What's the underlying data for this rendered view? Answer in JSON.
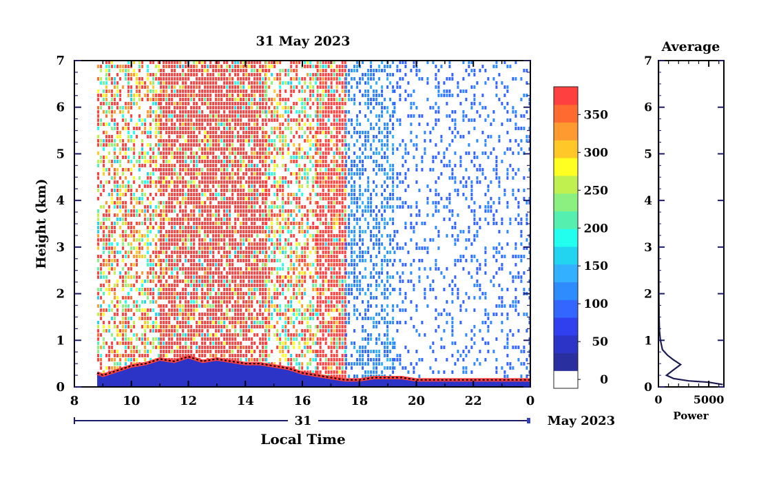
{
  "chart_data": [
    {
      "type": "heatmap",
      "title": "31 May 2023",
      "xlabel": "Local Time",
      "ylabel": "Height (km)",
      "x_ticks": [
        "8",
        "10",
        "12",
        "14",
        "16",
        "18",
        "20",
        "22",
        "0"
      ],
      "x_range_hours": [
        8,
        24
      ],
      "y_ticks": [
        "0",
        "1",
        "2",
        "3",
        "4",
        "5",
        "6",
        "7"
      ],
      "ylim": [
        0,
        7
      ],
      "date_row": {
        "day": "31",
        "month_label": "May 2023"
      },
      "data_start_hour": 8.8,
      "colorbar": {
        "tick_labels": [
          "0",
          "50",
          "100",
          "150",
          "200",
          "250",
          "300",
          "350"
        ],
        "range": [
          0,
          375
        ],
        "bands": [
          "#ffffff",
          "#2a2fa0",
          "#2c34c8",
          "#3040ee",
          "#3366ff",
          "#2f8cff",
          "#33b0ff",
          "#22d4f0",
          "#22ffee",
          "#55f0b0",
          "#8cf080",
          "#c0f050",
          "#ffff22",
          "#ffc828",
          "#ff9a30",
          "#ff6a30",
          "#ff4040"
        ],
        "band_range": [
          0,
          375
        ]
      },
      "regions": [
        {
          "from_hour": 8.8,
          "to_hour": 11.0,
          "top_km": 7,
          "fill": "mixed"
        },
        {
          "from_hour": 11.0,
          "to_hour": 14.7,
          "top_km": 7,
          "fill": "red"
        },
        {
          "from_hour": 14.7,
          "to_hour": 16.5,
          "top_km": 7,
          "fill": "mixed"
        },
        {
          "from_hour": 16.5,
          "to_hour": 17.5,
          "top_km": 7,
          "fill": "red"
        },
        {
          "from_hour": 17.5,
          "to_hour": 19.2,
          "top_km": 7,
          "fill": "blue"
        },
        {
          "from_hour": 19.2,
          "to_hour": 24.0,
          "top_km": 7,
          "fill": "blue-sparse"
        }
      ],
      "boundary_layer_km": [
        [
          8.8,
          0.3
        ],
        [
          9.0,
          0.25
        ],
        [
          9.5,
          0.35
        ],
        [
          10.0,
          0.45
        ],
        [
          10.5,
          0.5
        ],
        [
          11.0,
          0.6
        ],
        [
          11.5,
          0.55
        ],
        [
          12.0,
          0.65
        ],
        [
          12.5,
          0.55
        ],
        [
          13.0,
          0.6
        ],
        [
          13.5,
          0.55
        ],
        [
          14.0,
          0.5
        ],
        [
          14.5,
          0.5
        ],
        [
          15.0,
          0.45
        ],
        [
          15.5,
          0.4
        ],
        [
          16.0,
          0.3
        ],
        [
          16.5,
          0.25
        ],
        [
          17.0,
          0.2
        ],
        [
          17.5,
          0.15
        ],
        [
          18.0,
          0.15
        ],
        [
          18.5,
          0.2
        ],
        [
          19.0,
          0.2
        ],
        [
          19.5,
          0.2
        ],
        [
          20.0,
          0.15
        ],
        [
          21.0,
          0.15
        ],
        [
          22.0,
          0.15
        ],
        [
          23.0,
          0.15
        ],
        [
          24.0,
          0.15
        ]
      ]
    },
    {
      "type": "line",
      "title": "Average",
      "xlabel": "Power",
      "x_ticks": [
        "0",
        "5000"
      ],
      "xlim": [
        0,
        6500
      ],
      "y_ticks": [
        "0",
        "1",
        "2",
        "3",
        "4",
        "5",
        "6",
        "7"
      ],
      "ylim": [
        0,
        7
      ],
      "points": [
        [
          6400,
          0.05
        ],
        [
          5000,
          0.1
        ],
        [
          3000,
          0.13
        ],
        [
          1500,
          0.18
        ],
        [
          800,
          0.25
        ],
        [
          1400,
          0.35
        ],
        [
          2200,
          0.48
        ],
        [
          1500,
          0.58
        ],
        [
          900,
          0.68
        ],
        [
          400,
          0.8
        ],
        [
          200,
          1.0
        ],
        [
          100,
          1.2
        ],
        [
          60,
          1.5
        ],
        [
          40,
          2.0
        ],
        [
          30,
          3.0
        ],
        [
          20,
          4.0
        ],
        [
          15,
          5.0
        ],
        [
          10,
          6.0
        ],
        [
          8,
          7.0
        ]
      ]
    }
  ]
}
